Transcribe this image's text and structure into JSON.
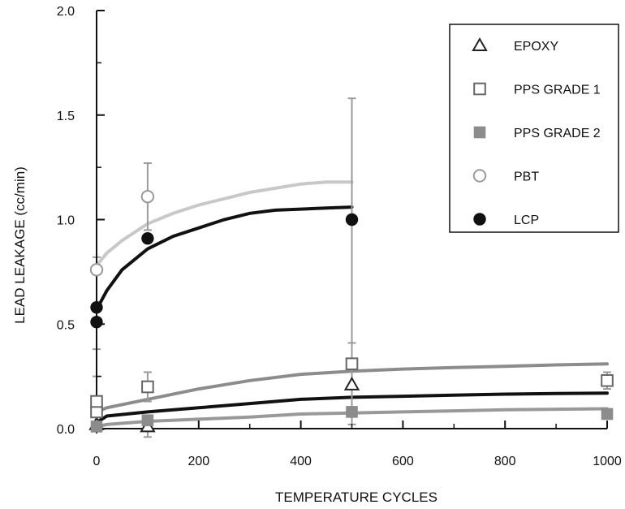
{
  "chart_data": {
    "type": "scatter",
    "title": "",
    "xlabel": "TEMPERATURE CYCLES",
    "ylabel": "LEAD LEAKAGE (cc/min)",
    "xlim": [
      0,
      1000
    ],
    "ylim": [
      0,
      2.0
    ],
    "x_ticks": [
      0,
      200,
      400,
      600,
      800,
      1000
    ],
    "x_tick_labels": [
      "0",
      "200",
      "400",
      "600",
      "800",
      "1000"
    ],
    "y_ticks": [
      0,
      0.5,
      1.0,
      1.5,
      2.0
    ],
    "y_tick_labels": [
      "0.0",
      "0.5",
      "1.0",
      "1.5",
      "2.0"
    ],
    "grid": false,
    "legend_position": "top-right",
    "series": [
      {
        "name": "EPOXY",
        "marker": "triangle-open",
        "color": "#222222",
        "line_color": "#111111",
        "points": [
          {
            "x": 0,
            "y": 0.02
          },
          {
            "x": 100,
            "y": 0.01,
            "err_low": 0.05,
            "err_high": 0.05
          },
          {
            "x": 500,
            "y": 0.21
          }
        ],
        "fit": [
          [
            0,
            0.03
          ],
          [
            20,
            0.06
          ],
          [
            100,
            0.08
          ],
          [
            200,
            0.1
          ],
          [
            300,
            0.12
          ],
          [
            400,
            0.14
          ],
          [
            500,
            0.15
          ],
          [
            600,
            0.155
          ],
          [
            700,
            0.16
          ],
          [
            800,
            0.165
          ],
          [
            900,
            0.168
          ],
          [
            1000,
            0.17
          ]
        ]
      },
      {
        "name": "PPS GRADE 1",
        "marker": "square-open",
        "color": "#666666",
        "line_color": "#8c8c8c",
        "points": [
          {
            "x": 0,
            "y": 0.08
          },
          {
            "x": 0,
            "y": 0.13,
            "err_low": 0.12,
            "err_high": 0.12
          },
          {
            "x": 100,
            "y": 0.2,
            "err_low": 0.07,
            "err_high": 0.07
          },
          {
            "x": 500,
            "y": 0.31,
            "err_low": 0.1,
            "err_high": 0.1
          },
          {
            "x": 1000,
            "y": 0.23,
            "err_low": 0.04,
            "err_high": 0.04
          }
        ],
        "fit": [
          [
            0,
            0.08
          ],
          [
            20,
            0.1
          ],
          [
            100,
            0.14
          ],
          [
            200,
            0.19
          ],
          [
            300,
            0.23
          ],
          [
            400,
            0.26
          ],
          [
            500,
            0.275
          ],
          [
            600,
            0.285
          ],
          [
            700,
            0.292
          ],
          [
            800,
            0.298
          ],
          [
            900,
            0.305
          ],
          [
            1000,
            0.31
          ]
        ]
      },
      {
        "name": "PPS GRADE 2",
        "marker": "square-filled",
        "color": "#8c8c8c",
        "line_color": "#999999",
        "points": [
          {
            "x": 0,
            "y": 0.01
          },
          {
            "x": 100,
            "y": 0.04
          },
          {
            "x": 500,
            "y": 0.08
          },
          {
            "x": 1000,
            "y": 0.07
          }
        ],
        "fit": [
          [
            0,
            0.01
          ],
          [
            20,
            0.02
          ],
          [
            100,
            0.035
          ],
          [
            200,
            0.045
          ],
          [
            300,
            0.055
          ],
          [
            400,
            0.07
          ],
          [
            500,
            0.075
          ],
          [
            600,
            0.08
          ],
          [
            700,
            0.085
          ],
          [
            800,
            0.09
          ],
          [
            900,
            0.093
          ],
          [
            1000,
            0.095
          ]
        ]
      },
      {
        "name": "PBT",
        "marker": "circle-open",
        "color": "#999999",
        "line_color": "#c8c8c8",
        "points": [
          {
            "x": 0,
            "y": 0.76,
            "err_low": 0.38,
            "err_high": 0.06
          },
          {
            "x": 100,
            "y": 1.11,
            "err_low": 0.16,
            "err_high": 0.16
          }
        ],
        "fit": [
          [
            0,
            0.78
          ],
          [
            20,
            0.84
          ],
          [
            50,
            0.9
          ],
          [
            100,
            0.98
          ],
          [
            150,
            1.03
          ],
          [
            200,
            1.07
          ],
          [
            250,
            1.1
          ],
          [
            300,
            1.13
          ],
          [
            350,
            1.15
          ],
          [
            400,
            1.17
          ],
          [
            450,
            1.18
          ],
          [
            500,
            1.18
          ]
        ]
      },
      {
        "name": "LCP",
        "marker": "circle-filled",
        "color": "#111111",
        "line_color": "#111111",
        "points": [
          {
            "x": 0,
            "y": 0.51
          },
          {
            "x": 0,
            "y": 0.58
          },
          {
            "x": 100,
            "y": 0.91
          },
          {
            "x": 500,
            "y": 1.0,
            "err_low": 0.98,
            "err_high": 0.58
          }
        ],
        "fit": [
          [
            0,
            0.57
          ],
          [
            20,
            0.66
          ],
          [
            50,
            0.76
          ],
          [
            100,
            0.86
          ],
          [
            150,
            0.92
          ],
          [
            200,
            0.96
          ],
          [
            250,
            1.0
          ],
          [
            300,
            1.03
          ],
          [
            350,
            1.045
          ],
          [
            400,
            1.05
          ],
          [
            450,
            1.055
          ],
          [
            500,
            1.06
          ]
        ]
      }
    ]
  }
}
